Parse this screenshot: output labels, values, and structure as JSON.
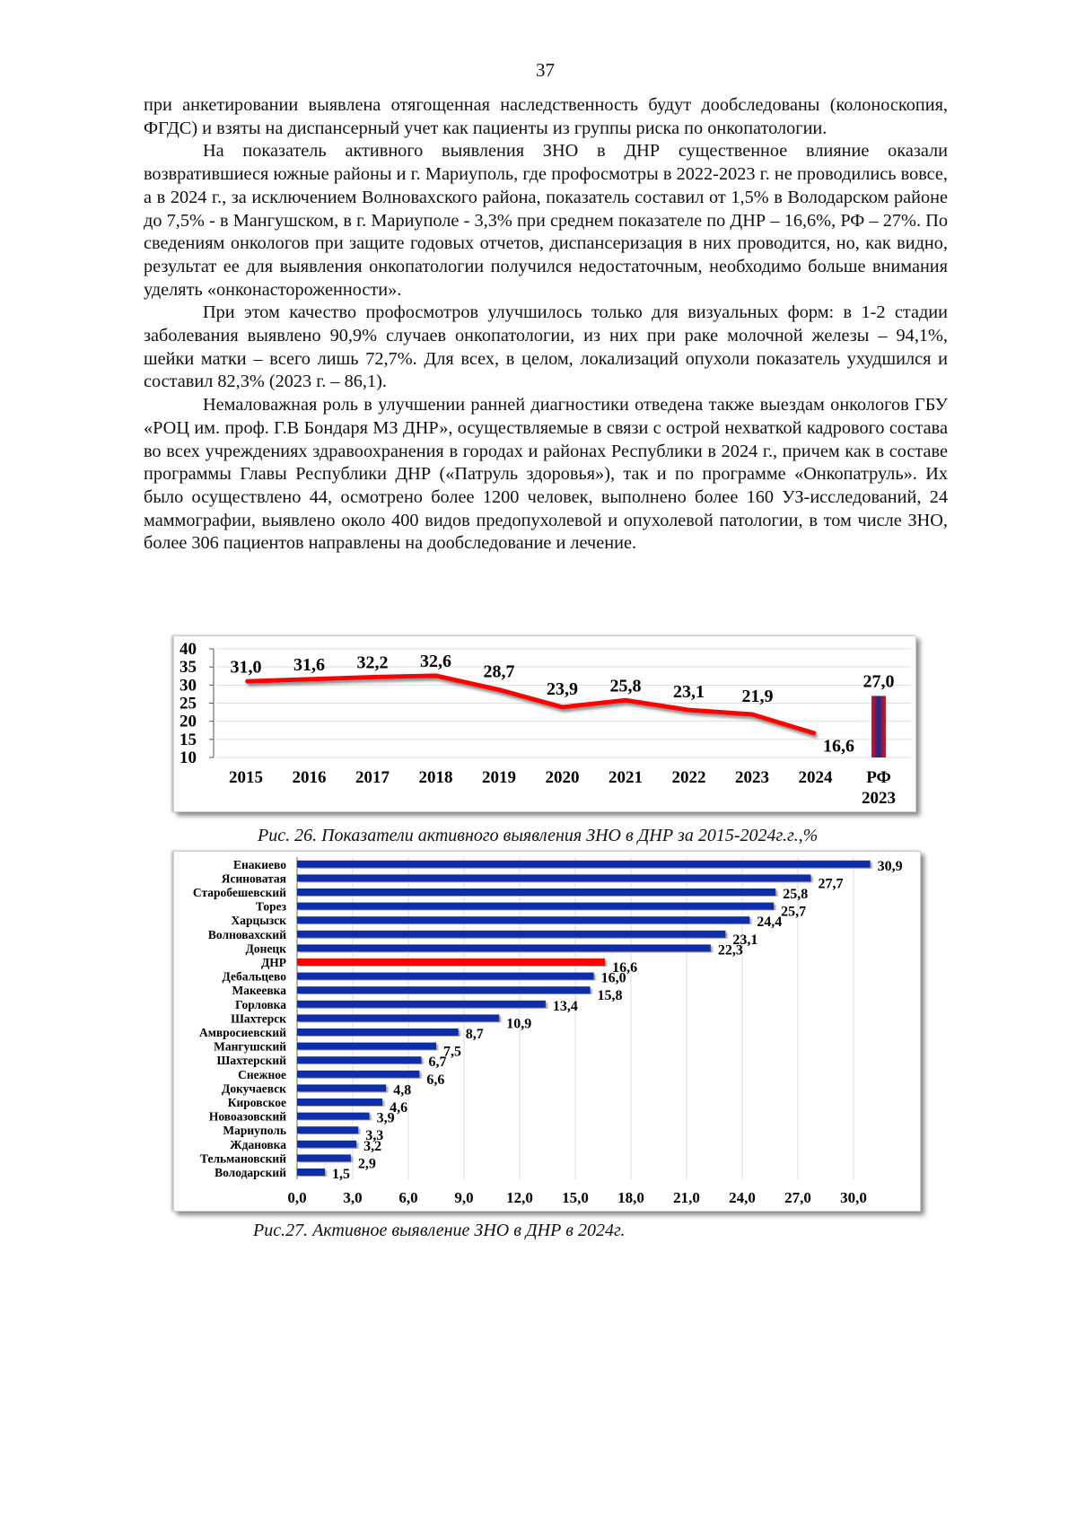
{
  "page_number": "37",
  "paragraphs": [
    "при анкетировании выявлена отягощенная наследственность будут дообследованы (колоноскопия, ФГДС) и взяты на диспансерный учет как пациенты из группы риска по онкопатологии.",
    "На показатель активного выявления ЗНО в ДНР существенное влияние оказали возвратившиеся южные районы и г. Мариуполь, где профосмотры в 2022-2023 г. не проводились вовсе, а в 2024 г., за исключением Волноваxского района, показатель составил от 1,5% в Володарском районе до 7,5% - в Мангушском, в г. Мариуполе - 3,3% при среднем показателе по ДНР – 16,6%, РФ – 27%. По сведениям онкологов при защите годовых отчетов, диспансеризация в них проводится, но, как видно, результат ее для выявления онкопатологии получился недостаточным, необходимо больше внимания уделять «онконастороженности».",
    "При этом качество профосмотров улучшилось только для визуальных форм: в 1-2 стадии заболевания выявлено 90,9% случаев онкопатологии, из них при раке молочной железы – 94,1%, шейки матки – всего лишь 72,7%. Для всех, в целом, локализаций опухоли показатель ухудшился и составил 82,3% (2023 г. – 86,1).",
    "Немаловажная роль в улучшении ранней диагностики отведена также выездам онкологов ГБУ «РОЦ им. проф. Г.В Бондаря МЗ ДНР», осуществляемые в связи с острой нехваткой кадрового состава во всех учреждениях здравоохранения в городах и районах Республики в 2024 г., причем как в составе программы Главы Республики ДНР («Патруль здоровья»), так и по программе «Онкопатруль». Их было осуществлено 44, осмотрено более 1200 человек, выполнено более 160 УЗ-исследований, 24 маммографии, выявлено около 400 видов предопухолевой и опухолевой патологии, в том числе ЗНО, более 306 пациентов направлены на дообследование и лечение."
  ],
  "captions": {
    "fig26": "Рис. 26. Показатели активного выявления ЗНО в ДНР за 2015-2024г.г.,%",
    "fig27": "Рис.27. Активное выявление ЗНО в ДНР в 2024г."
  },
  "chart_data": [
    {
      "type": "line",
      "categories": [
        "2015",
        "2016",
        "2017",
        "2018",
        "2019",
        "2020",
        "2021",
        "2022",
        "2023",
        "2024"
      ],
      "values": [
        31.0,
        31.6,
        32.2,
        32.6,
        28.7,
        23.9,
        25.8,
        23.1,
        21.9,
        16.6
      ],
      "value_labels": [
        "31,0",
        "31,6",
        "32,2",
        "32,6",
        "28,7",
        "23,9",
        "25,8",
        "23,1",
        "21,9",
        "16,6"
      ],
      "reference": {
        "label_line1": "РФ",
        "label_line2": "2023",
        "value": 27.0,
        "value_label": "27,0"
      },
      "yticks": [
        "10",
        "15",
        "20",
        "25",
        "30",
        "35",
        "40"
      ],
      "ylim": [
        10,
        40
      ],
      "grid": true,
      "line_color": "#ff0000"
    },
    {
      "type": "bar",
      "orientation": "horizontal",
      "categories": [
        "Енакиево",
        "Ясиноватая",
        "Старобешевский",
        "Торез",
        "Харцызск",
        "Волновахский",
        "Донецк",
        "ДНР",
        "Дебальцево",
        "Макеевка",
        "Горловка",
        "Шахтерск",
        "Амвросиевский",
        "Мангушский",
        "Шахтерский",
        "Снежное",
        "Докучаевск",
        "Кировское",
        "Новоазовский",
        "Мариуполь",
        "Ждановка",
        "Тельмановский",
        "Володарский"
      ],
      "values": [
        30.9,
        27.7,
        25.8,
        25.7,
        24.4,
        23.1,
        22.3,
        16.6,
        16.0,
        15.8,
        13.4,
        10.9,
        8.7,
        7.5,
        6.7,
        6.6,
        4.8,
        4.6,
        3.9,
        3.3,
        3.2,
        2.9,
        1.5
      ],
      "value_labels": [
        "30,9",
        "27,7",
        "25,8",
        "25,7",
        "24,4",
        "23,1",
        "22,3",
        "16,6",
        "16,0",
        "15,8",
        "13,4",
        "10,9",
        "8,7",
        "7,5",
        "6,7",
        "6,6",
        "4,8",
        "4,6",
        "3,9",
        "3,3",
        "3,2",
        "2,9",
        "1,5"
      ],
      "xticks": [
        "0,0",
        "3,0",
        "6,0",
        "9,0",
        "12,0",
        "15,0",
        "18,0",
        "21,0",
        "24,0",
        "27,0",
        "30,0"
      ],
      "xlim": [
        0,
        30
      ],
      "grid": true,
      "bar_color": "#0a2fa8",
      "highlight": {
        "category": "ДНР",
        "color": "#ff0000"
      }
    }
  ]
}
